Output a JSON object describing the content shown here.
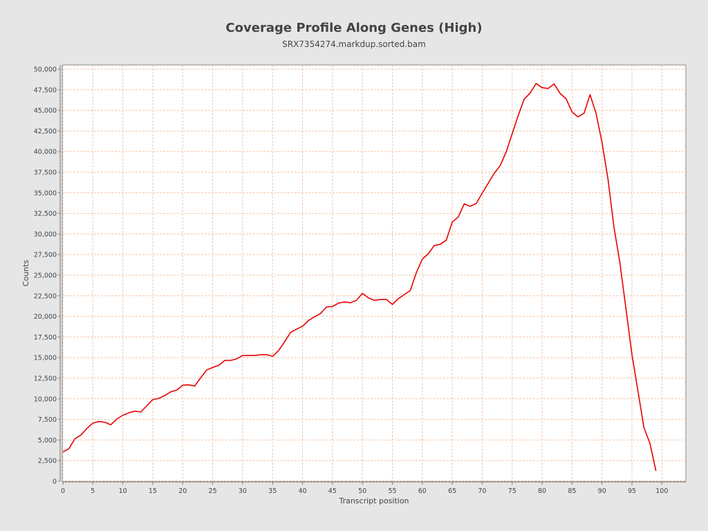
{
  "colors": {
    "background": "#e6e6e6",
    "plot_background": "#ffffff",
    "gridline": "#f2c4a3",
    "series": "#e60000",
    "text": "#444444"
  },
  "chart_data": {
    "type": "line",
    "title": "Coverage Profile Along Genes (High)",
    "subtitle": "SRX7354274.markdup.sorted.bam",
    "xlabel": "Transcript position",
    "ylabel": "Counts",
    "xlim": [
      0,
      104
    ],
    "ylim": [
      0,
      50500
    ],
    "xticks": [
      0,
      5,
      10,
      15,
      20,
      25,
      30,
      35,
      40,
      45,
      50,
      55,
      60,
      65,
      70,
      75,
      80,
      85,
      90,
      95,
      100
    ],
    "yticks": [
      0,
      2500,
      5000,
      7500,
      10000,
      12500,
      15000,
      17500,
      20000,
      22500,
      25000,
      27500,
      30000,
      32500,
      35000,
      37500,
      40000,
      42500,
      45000,
      47500,
      50000
    ],
    "ytick_labels": [
      "0",
      "2,500",
      "5,000",
      "7,500",
      "10,000",
      "12,500",
      "15,000",
      "17,500",
      "20,000",
      "22,500",
      "25,000",
      "27,500",
      "30,000",
      "32,500",
      "35,000",
      "37,500",
      "40,000",
      "42,500",
      "45,000",
      "47,500",
      "50,000"
    ],
    "grid": true,
    "legend": "none",
    "x": [
      0,
      1,
      2,
      3,
      4,
      5,
      6,
      7,
      8,
      9,
      10,
      11,
      12,
      13,
      14,
      15,
      16,
      17,
      18,
      19,
      20,
      21,
      22,
      23,
      24,
      25,
      26,
      27,
      28,
      29,
      30,
      31,
      32,
      33,
      34,
      35,
      36,
      37,
      38,
      39,
      40,
      41,
      42,
      43,
      44,
      45,
      46,
      47,
      48,
      49,
      50,
      51,
      52,
      53,
      54,
      55,
      56,
      57,
      58,
      59,
      60,
      61,
      62,
      63,
      64,
      65,
      66,
      67,
      68,
      69,
      70,
      71,
      72,
      73,
      74,
      75,
      76,
      77,
      78,
      79,
      80,
      81,
      82,
      83,
      84,
      85,
      86,
      87,
      88,
      89,
      90,
      91,
      92,
      93,
      94,
      95,
      96,
      97,
      98,
      99
    ],
    "y": [
      3550,
      3950,
      5150,
      5600,
      6400,
      7050,
      7250,
      7150,
      6850,
      7550,
      8000,
      8300,
      8500,
      8400,
      9150,
      9900,
      10050,
      10400,
      10850,
      11050,
      11650,
      11700,
      11550,
      12550,
      13500,
      13800,
      14050,
      14650,
      14650,
      14850,
      15250,
      15250,
      15250,
      15350,
      15350,
      15150,
      15850,
      16900,
      18050,
      18450,
      18800,
      19500,
      19950,
      20350,
      21150,
      21200,
      21600,
      21750,
      21650,
      21950,
      22800,
      22250,
      21950,
      22050,
      22050,
      21450,
      22150,
      22650,
      23150,
      25300,
      26950,
      27600,
      28600,
      28750,
      29250,
      31450,
      32050,
      33650,
      33350,
      33700,
      34950,
      36150,
      37350,
      38300,
      39950,
      42150,
      44350,
      46350,
      47100,
      48250,
      47750,
      47650,
      48200,
      47050,
      46400,
      44800,
      44200,
      44650,
      46900,
      44650,
      41100,
      36650,
      30800,
      26450,
      20900,
      15350,
      10950,
      6500,
      4600,
      1250
    ]
  }
}
